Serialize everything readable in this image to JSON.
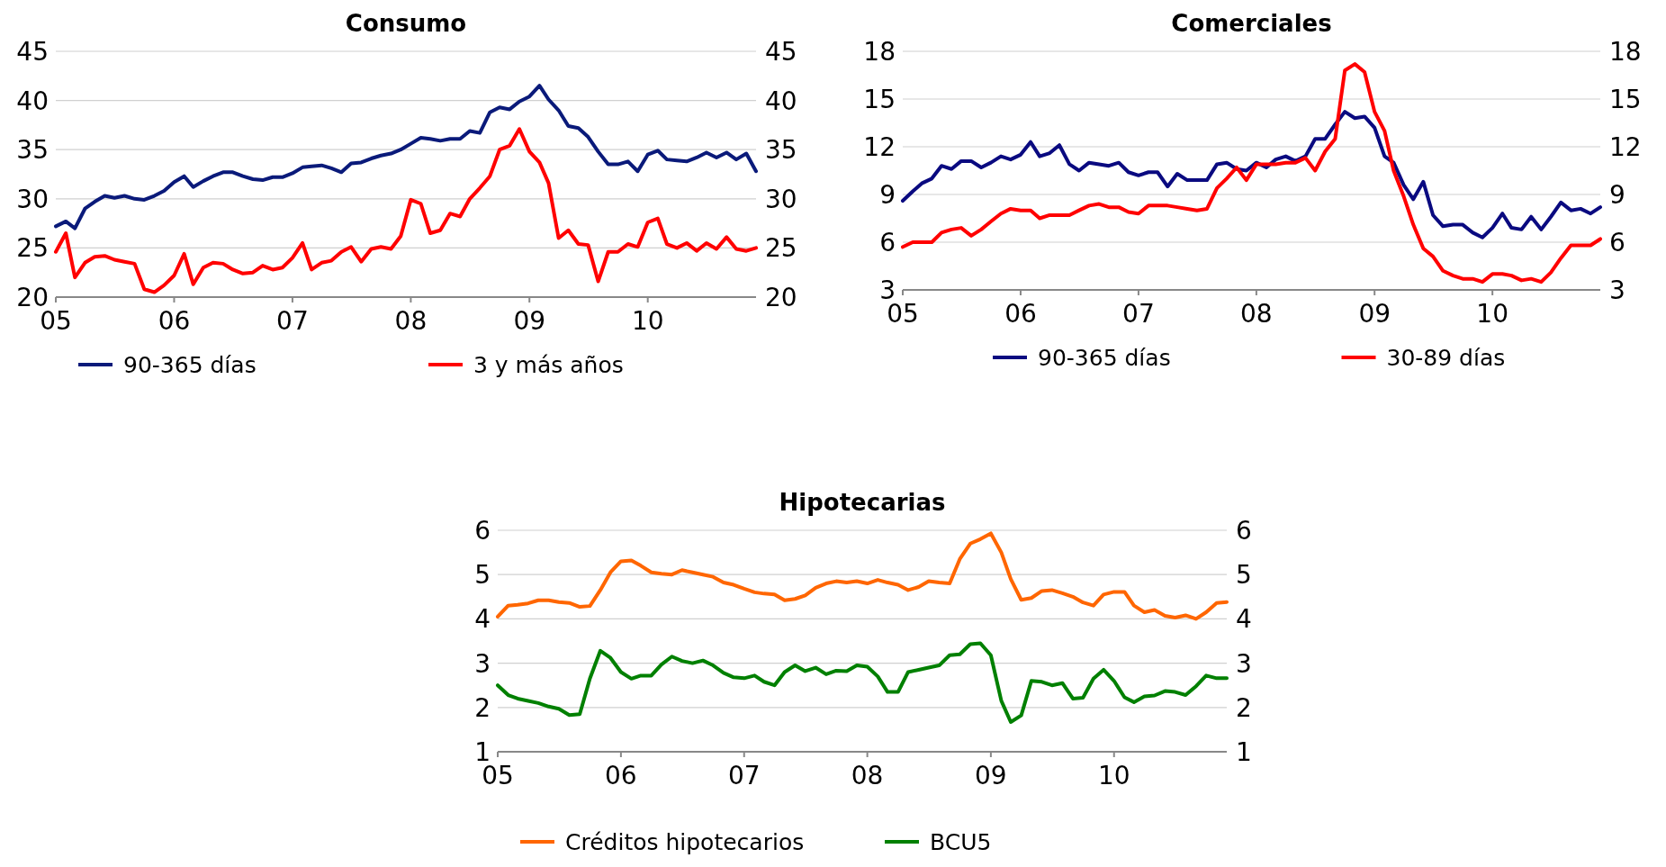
{
  "chart_data": [
    {
      "type": "line",
      "title": "Consumo",
      "x": [
        "2005-01",
        "2005-02",
        "2005-03",
        "2005-04",
        "2005-05",
        "2005-06",
        "2005-07",
        "2005-08",
        "2005-09",
        "2005-10",
        "2005-11",
        "2005-12",
        "2006-01",
        "2006-02",
        "2006-03",
        "2006-04",
        "2006-05",
        "2006-06",
        "2006-07",
        "2006-08",
        "2006-09",
        "2006-10",
        "2006-11",
        "2006-12",
        "2007-01",
        "2007-02",
        "2007-03",
        "2007-04",
        "2007-05",
        "2007-06",
        "2007-07",
        "2007-08",
        "2007-09",
        "2007-10",
        "2007-11",
        "2007-12",
        "2008-01",
        "2008-02",
        "2008-03",
        "2008-04",
        "2008-05",
        "2008-06",
        "2008-07",
        "2008-08",
        "2008-09",
        "2008-10",
        "2008-11",
        "2008-12",
        "2009-01",
        "2009-02",
        "2009-03",
        "2009-04",
        "2009-05",
        "2009-06",
        "2009-07",
        "2009-08",
        "2009-09",
        "2009-10",
        "2009-11",
        "2009-12",
        "2010-01",
        "2010-02",
        "2010-03",
        "2010-04",
        "2010-05",
        "2010-06",
        "2010-07",
        "2010-08",
        "2010-09",
        "2010-10",
        "2010-11",
        "2010-12"
      ],
      "series": [
        {
          "name": "90-365 días",
          "color": "#0a1a7a",
          "values": [
            27.2,
            27.7,
            27.0,
            29.0,
            29.7,
            30.3,
            30.1,
            30.3,
            30.0,
            29.9,
            30.3,
            30.8,
            31.7,
            32.3,
            31.2,
            31.8,
            32.3,
            32.7,
            32.7,
            32.3,
            32.0,
            31.9,
            32.2,
            32.2,
            32.6,
            33.2,
            33.3,
            33.4,
            33.1,
            32.7,
            33.6,
            33.7,
            34.1,
            34.4,
            34.6,
            35.0,
            35.6,
            36.2,
            36.1,
            35.9,
            36.1,
            36.1,
            36.9,
            36.7,
            38.8,
            39.3,
            39.1,
            39.9,
            40.4,
            41.5,
            40.1,
            39.0,
            37.4,
            37.2,
            36.3,
            34.8,
            33.5,
            33.5,
            33.8,
            32.8,
            34.5,
            34.9,
            34.0,
            33.9,
            33.8,
            34.2,
            34.7,
            34.2,
            34.7,
            34.0,
            34.6,
            32.8
          ]
        },
        {
          "name": "3 y más años",
          "color": "#ff0000",
          "values": [
            24.6,
            26.5,
            22.0,
            23.5,
            24.1,
            24.2,
            23.8,
            23.6,
            23.4,
            20.8,
            20.5,
            21.2,
            22.2,
            24.4,
            21.3,
            23.0,
            23.5,
            23.4,
            22.8,
            22.4,
            22.5,
            23.2,
            22.8,
            23.0,
            24.0,
            25.5,
            22.8,
            23.5,
            23.7,
            24.6,
            25.1,
            23.6,
            24.9,
            25.1,
            24.9,
            26.2,
            29.9,
            29.5,
            26.5,
            26.8,
            28.5,
            28.2,
            30.0,
            31.1,
            32.3,
            35.0,
            35.4,
            37.1,
            34.8,
            33.7,
            31.6,
            26.0,
            26.8,
            25.4,
            25.3,
            21.6,
            24.6,
            24.6,
            25.4,
            25.1,
            27.6,
            28.0,
            25.4,
            25.0,
            25.5,
            24.7,
            25.5,
            24.9,
            26.1,
            24.9,
            24.7,
            25.0
          ]
        }
      ],
      "xlim": [
        "2005-01",
        "2010-12"
      ],
      "xticks": [
        {
          "value": "2005-01",
          "label": "05"
        },
        {
          "value": "2006-01",
          "label": "06"
        },
        {
          "value": "2007-01",
          "label": "07"
        },
        {
          "value": "2008-01",
          "label": "08"
        },
        {
          "value": "2009-01",
          "label": "09"
        },
        {
          "value": "2010-01",
          "label": "10"
        }
      ],
      "ylim": [
        20,
        45
      ],
      "yticks": [
        20,
        25,
        30,
        35,
        40,
        45
      ],
      "y2lim": [
        20,
        45
      ],
      "y2ticks": [
        20,
        25,
        30,
        35,
        40,
        45
      ],
      "grid": "y",
      "legend": "bottom"
    },
    {
      "type": "line",
      "title": "Comerciales",
      "x": [
        "2005-01",
        "2005-02",
        "2005-03",
        "2005-04",
        "2005-05",
        "2005-06",
        "2005-07",
        "2005-08",
        "2005-09",
        "2005-10",
        "2005-11",
        "2005-12",
        "2006-01",
        "2006-02",
        "2006-03",
        "2006-04",
        "2006-05",
        "2006-06",
        "2006-07",
        "2006-08",
        "2006-09",
        "2006-10",
        "2006-11",
        "2006-12",
        "2007-01",
        "2007-02",
        "2007-03",
        "2007-04",
        "2007-05",
        "2007-06",
        "2007-07",
        "2007-08",
        "2007-09",
        "2007-10",
        "2007-11",
        "2007-12",
        "2008-01",
        "2008-02",
        "2008-03",
        "2008-04",
        "2008-05",
        "2008-06",
        "2008-07",
        "2008-08",
        "2008-09",
        "2008-10",
        "2008-11",
        "2008-12",
        "2009-01",
        "2009-02",
        "2009-03",
        "2009-04",
        "2009-05",
        "2009-06",
        "2009-07",
        "2009-08",
        "2009-09",
        "2009-10",
        "2009-11",
        "2009-12",
        "2010-01",
        "2010-02",
        "2010-03",
        "2010-04",
        "2010-05",
        "2010-06",
        "2010-07",
        "2010-08",
        "2010-09",
        "2010-10",
        "2010-11",
        "2010-12"
      ],
      "series": [
        {
          "name": "90-365 días",
          "color": "#0a0a80",
          "values": [
            8.6,
            9.2,
            9.7,
            10.0,
            10.8,
            10.6,
            11.1,
            11.1,
            10.7,
            11.0,
            11.4,
            11.2,
            11.5,
            12.3,
            11.4,
            11.6,
            12.1,
            10.9,
            10.5,
            11.0,
            10.9,
            10.8,
            11.0,
            10.4,
            10.2,
            10.4,
            10.4,
            9.5,
            10.3,
            9.9,
            9.9,
            9.9,
            10.9,
            11.0,
            10.6,
            10.5,
            11.0,
            10.7,
            11.2,
            11.4,
            11.1,
            11.4,
            12.5,
            12.5,
            13.4,
            14.2,
            13.8,
            13.9,
            13.2,
            11.4,
            11.0,
            9.6,
            8.7,
            9.8,
            7.7,
            7.0,
            7.1,
            7.1,
            6.6,
            6.3,
            6.9,
            7.8,
            6.9,
            6.8,
            7.6,
            6.8,
            7.6,
            8.5,
            8.0,
            8.1,
            7.8,
            8.2
          ]
        },
        {
          "name": "30-89 días",
          "color": "#ff0000",
          "values": [
            5.7,
            6.0,
            6.0,
            6.0,
            6.6,
            6.8,
            6.9,
            6.4,
            6.8,
            7.3,
            7.8,
            8.1,
            8.0,
            8.0,
            7.5,
            7.7,
            7.7,
            7.7,
            8.0,
            8.3,
            8.4,
            8.2,
            8.2,
            7.9,
            7.8,
            8.3,
            8.3,
            8.3,
            8.2,
            8.1,
            8.0,
            8.1,
            9.4,
            10.0,
            10.7,
            9.9,
            10.9,
            10.9,
            10.9,
            11.0,
            11.0,
            11.3,
            10.5,
            11.7,
            12.5,
            16.8,
            17.2,
            16.7,
            14.2,
            13.0,
            10.5,
            8.9,
            7.1,
            5.6,
            5.1,
            4.2,
            3.9,
            3.7,
            3.7,
            3.5,
            4.0,
            4.0,
            3.9,
            3.6,
            3.7,
            3.5,
            4.1,
            5.0,
            5.8,
            5.8,
            5.8,
            6.2
          ]
        }
      ],
      "xlim": [
        "2005-01",
        "2010-12"
      ],
      "xticks": [
        {
          "value": "2005-01",
          "label": "05"
        },
        {
          "value": "2006-01",
          "label": "06"
        },
        {
          "value": "2007-01",
          "label": "07"
        },
        {
          "value": "2008-01",
          "label": "08"
        },
        {
          "value": "2009-01",
          "label": "09"
        },
        {
          "value": "2010-01",
          "label": "10"
        }
      ],
      "ylim": [
        3,
        18
      ],
      "yticks": [
        3,
        6,
        9,
        12,
        15,
        18
      ],
      "y2lim": [
        3,
        18
      ],
      "y2ticks": [
        3,
        6,
        9,
        12,
        15,
        18
      ],
      "grid": "y",
      "legend": "bottom"
    },
    {
      "type": "line",
      "title": "Hipotecarias",
      "x": [
        "2005-01",
        "2005-02",
        "2005-03",
        "2005-04",
        "2005-05",
        "2005-06",
        "2005-07",
        "2005-08",
        "2005-09",
        "2005-10",
        "2005-11",
        "2005-12",
        "2006-01",
        "2006-02",
        "2006-03",
        "2006-04",
        "2006-05",
        "2006-06",
        "2006-07",
        "2006-08",
        "2006-09",
        "2006-10",
        "2006-11",
        "2006-12",
        "2007-01",
        "2007-02",
        "2007-03",
        "2007-04",
        "2007-05",
        "2007-06",
        "2007-07",
        "2007-08",
        "2007-09",
        "2007-10",
        "2007-11",
        "2007-12",
        "2008-01",
        "2008-02",
        "2008-03",
        "2008-04",
        "2008-05",
        "2008-06",
        "2008-07",
        "2008-08",
        "2008-09",
        "2008-10",
        "2008-11",
        "2008-12",
        "2009-01",
        "2009-02",
        "2009-03",
        "2009-04",
        "2009-05",
        "2009-06",
        "2009-07",
        "2009-08",
        "2009-09",
        "2009-10",
        "2009-11",
        "2009-12",
        "2010-01",
        "2010-02",
        "2010-03",
        "2010-04",
        "2010-05",
        "2010-06",
        "2010-07",
        "2010-08",
        "2010-09",
        "2010-10",
        "2010-11",
        "2010-12"
      ],
      "series": [
        {
          "name": "Créditos hipotecarios",
          "color": "#ff6600",
          "values": [
            4.05,
            4.3,
            4.32,
            4.35,
            4.42,
            4.42,
            4.38,
            4.36,
            4.27,
            4.29,
            4.65,
            5.05,
            5.3,
            5.32,
            5.2,
            5.05,
            5.02,
            5.0,
            5.1,
            5.05,
            5.0,
            4.95,
            4.82,
            4.77,
            4.68,
            4.6,
            4.57,
            4.55,
            4.42,
            4.45,
            4.53,
            4.7,
            4.8,
            4.85,
            4.82,
            4.85,
            4.8,
            4.88,
            4.82,
            4.77,
            4.65,
            4.72,
            4.85,
            4.82,
            4.8,
            5.35,
            5.7,
            5.8,
            5.93,
            5.5,
            4.9,
            4.43,
            4.47,
            4.63,
            4.65,
            4.58,
            4.5,
            4.37,
            4.3,
            4.55,
            4.61,
            4.61,
            4.3,
            4.15,
            4.2,
            4.07,
            4.03,
            4.08,
            4.0,
            4.15,
            4.36,
            4.38
          ]
        },
        {
          "name": "BCU5",
          "color": "#008000",
          "values": [
            2.5,
            2.28,
            2.2,
            2.15,
            2.1,
            2.02,
            1.97,
            1.83,
            1.85,
            2.65,
            3.28,
            3.12,
            2.8,
            2.65,
            2.72,
            2.72,
            2.97,
            3.15,
            3.05,
            3.0,
            3.06,
            2.95,
            2.78,
            2.68,
            2.66,
            2.72,
            2.58,
            2.5,
            2.8,
            2.95,
            2.82,
            2.9,
            2.75,
            2.83,
            2.82,
            2.95,
            2.92,
            2.7,
            2.35,
            2.35,
            2.8,
            2.85,
            2.9,
            2.95,
            3.18,
            3.2,
            3.43,
            3.45,
            3.18,
            2.15,
            1.67,
            1.82,
            2.6,
            2.58,
            2.5,
            2.55,
            2.2,
            2.22,
            2.65,
            2.85,
            2.6,
            2.23,
            2.12,
            2.25,
            2.27,
            2.37,
            2.35,
            2.28,
            2.48,
            2.72,
            2.66,
            2.66
          ]
        }
      ],
      "xlim": [
        "2005-01",
        "2010-12"
      ],
      "xticks": [
        {
          "value": "2005-01",
          "label": "05"
        },
        {
          "value": "2006-01",
          "label": "06"
        },
        {
          "value": "2007-01",
          "label": "07"
        },
        {
          "value": "2008-01",
          "label": "08"
        },
        {
          "value": "2009-01",
          "label": "09"
        },
        {
          "value": "2010-01",
          "label": "10"
        }
      ],
      "ylim": [
        1,
        6
      ],
      "yticks": [
        1,
        2,
        3,
        4,
        5,
        6
      ],
      "y2lim": [
        1,
        6
      ],
      "y2ticks": [
        1,
        2,
        3,
        4,
        5,
        6
      ],
      "grid": "y",
      "legend": "bottom"
    }
  ]
}
